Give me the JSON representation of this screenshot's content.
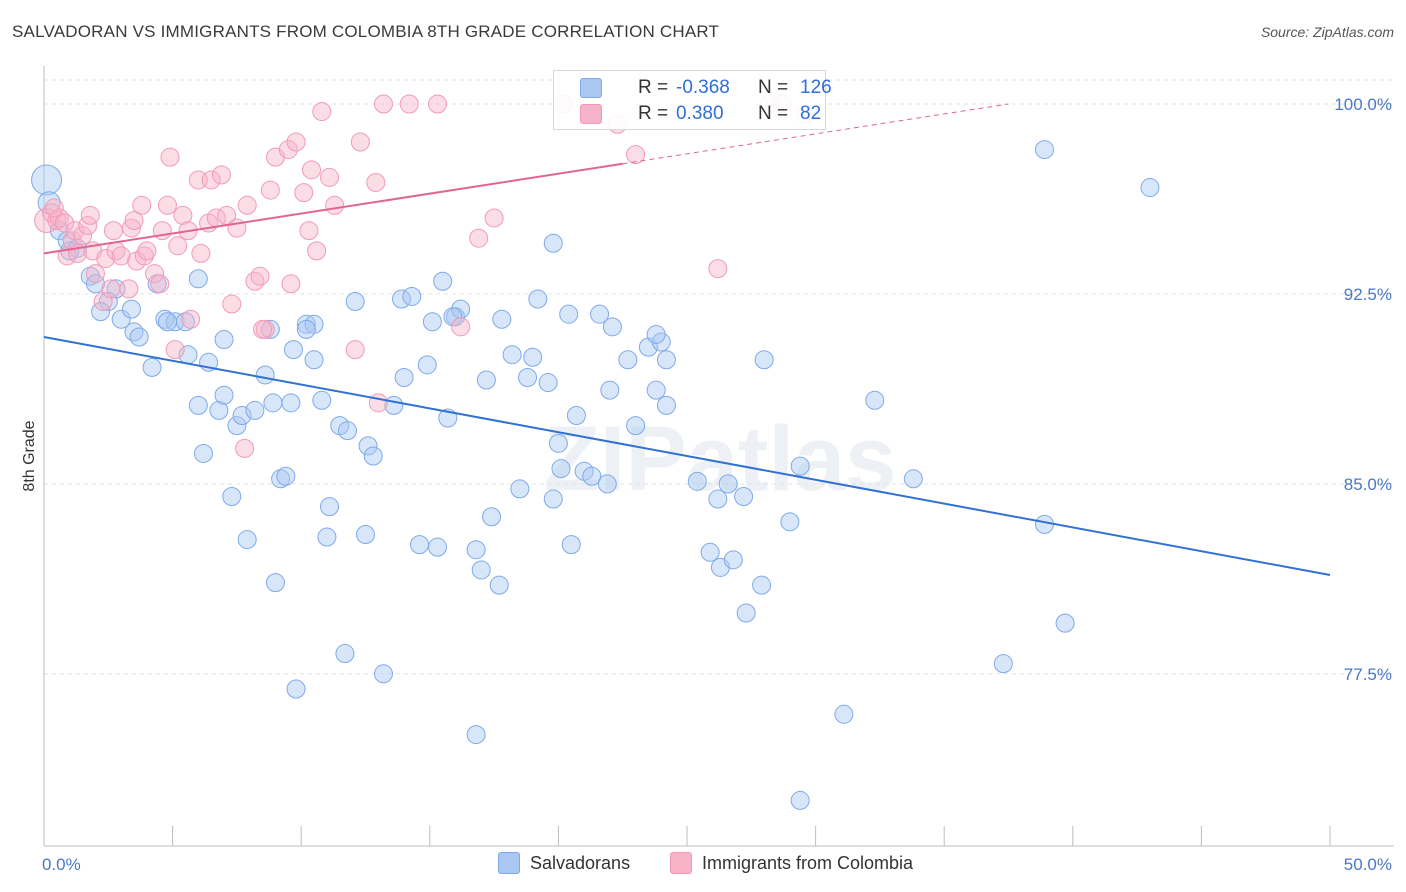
{
  "header": {
    "title": "SALVADORAN VS IMMIGRANTS FROM COLOMBIA 8TH GRADE CORRELATION CHART",
    "source": "Source: ZipAtlas.com"
  },
  "legend": {
    "rows": [
      {
        "r_label": "R =",
        "r_value": "-0.368",
        "n_label": "N =",
        "n_value": "126",
        "color": "#a9c7f2"
      },
      {
        "r_label": "R =",
        "r_value": "0.380",
        "n_label": "N =",
        "n_value": "82",
        "color": "#f6b3c8"
      }
    ]
  },
  "bottom_legend": {
    "items": [
      {
        "label": "Salvadorans",
        "color": "#a9c7f2"
      },
      {
        "label": "Immigrants from Colombia",
        "color": "#f6b3c8"
      }
    ]
  },
  "watermark": "ZIPatlas",
  "chart_data": {
    "type": "scatter",
    "title": "SALVADORAN VS IMMIGRANTS FROM COLOMBIA 8TH GRADE CORRELATION CHART",
    "xlabel": "",
    "ylabel": "8th Grade",
    "xlim": [
      0,
      50
    ],
    "ylim": [
      70.7,
      101.5
    ],
    "x_tick_labels": [
      "0.0%",
      "50.0%"
    ],
    "y_ticks": [
      77.5,
      85.0,
      92.5,
      100.0
    ],
    "y_tick_labels": [
      "77.5%",
      "85.0%",
      "92.5%",
      "100.0%"
    ],
    "grid": true,
    "legend_position": "top-center",
    "series": [
      {
        "name": "Salvadorans",
        "color": "#7eaaea",
        "trend_color": "#2f72d3",
        "trend": {
          "x": [
            0,
            50
          ],
          "y": [
            90.8,
            81.4
          ]
        },
        "points": [
          [
            0.1,
            97.0
          ],
          [
            0.2,
            96.1
          ],
          [
            0.6,
            95.0
          ],
          [
            0.9,
            94.6
          ],
          [
            1.0,
            94.2
          ],
          [
            1.3,
            94.3
          ],
          [
            1.8,
            93.2
          ],
          [
            2.0,
            92.9
          ],
          [
            2.8,
            92.7
          ],
          [
            2.5,
            92.2
          ],
          [
            2.2,
            91.8
          ],
          [
            3.0,
            91.5
          ],
          [
            3.4,
            91.9
          ],
          [
            3.5,
            91.0
          ],
          [
            3.7,
            90.8
          ],
          [
            4.2,
            89.6
          ],
          [
            4.4,
            92.9
          ],
          [
            4.7,
            91.5
          ],
          [
            5.1,
            91.4
          ],
          [
            5.5,
            91.4
          ],
          [
            5.6,
            90.1
          ],
          [
            6.0,
            88.1
          ],
          [
            6.0,
            93.1
          ],
          [
            6.2,
            86.2
          ],
          [
            6.4,
            89.8
          ],
          [
            6.8,
            87.9
          ],
          [
            7.0,
            90.7
          ],
          [
            7.0,
            88.5
          ],
          [
            7.3,
            84.5
          ],
          [
            7.5,
            87.3
          ],
          [
            7.7,
            87.7
          ],
          [
            7.9,
            82.8
          ],
          [
            8.2,
            87.9
          ],
          [
            8.6,
            89.3
          ],
          [
            8.8,
            91.1
          ],
          [
            8.9,
            88.2
          ],
          [
            9.0,
            81.1
          ],
          [
            9.2,
            85.2
          ],
          [
            9.4,
            85.3
          ],
          [
            9.6,
            88.2
          ],
          [
            9.7,
            90.3
          ],
          [
            9.8,
            76.9
          ],
          [
            10.2,
            91.3
          ],
          [
            10.5,
            89.9
          ],
          [
            10.5,
            91.3
          ],
          [
            10.8,
            88.3
          ],
          [
            11.0,
            82.9
          ],
          [
            11.1,
            84.1
          ],
          [
            11.5,
            87.3
          ],
          [
            11.7,
            78.3
          ],
          [
            11.8,
            87.1
          ],
          [
            12.1,
            92.2
          ],
          [
            12.5,
            83.0
          ],
          [
            12.6,
            86.5
          ],
          [
            12.8,
            86.1
          ],
          [
            13.2,
            77.5
          ],
          [
            13.6,
            88.1
          ],
          [
            13.9,
            92.3
          ],
          [
            14.0,
            89.2
          ],
          [
            14.3,
            92.4
          ],
          [
            14.6,
            82.6
          ],
          [
            14.9,
            89.7
          ],
          [
            15.1,
            91.4
          ],
          [
            15.3,
            82.5
          ],
          [
            15.5,
            93.0
          ],
          [
            15.7,
            87.6
          ],
          [
            16.0,
            91.6
          ],
          [
            16.2,
            91.9
          ],
          [
            16.8,
            75.1
          ],
          [
            16.8,
            82.4
          ],
          [
            17.0,
            81.6
          ],
          [
            17.2,
            89.1
          ],
          [
            17.4,
            83.7
          ],
          [
            17.7,
            81.0
          ],
          [
            17.8,
            91.5
          ],
          [
            18.2,
            90.1
          ],
          [
            18.5,
            84.8
          ],
          [
            18.8,
            89.2
          ],
          [
            19.0,
            90.0
          ],
          [
            19.2,
            92.3
          ],
          [
            19.6,
            89.0
          ],
          [
            19.8,
            84.4
          ],
          [
            19.8,
            94.5
          ],
          [
            20.0,
            86.6
          ],
          [
            20.4,
            91.7
          ],
          [
            20.5,
            82.6
          ],
          [
            20.7,
            87.7
          ],
          [
            21.0,
            85.5
          ],
          [
            21.3,
            85.3
          ],
          [
            21.6,
            91.7
          ],
          [
            21.9,
            85.0
          ],
          [
            22.0,
            88.7
          ],
          [
            22.1,
            91.2
          ],
          [
            22.7,
            89.9
          ],
          [
            23.0,
            87.3
          ],
          [
            23.5,
            90.4
          ],
          [
            23.8,
            88.7
          ],
          [
            24.0,
            90.6
          ],
          [
            24.2,
            89.9
          ],
          [
            24.2,
            88.1
          ],
          [
            25.4,
            85.1
          ],
          [
            25.9,
            82.3
          ],
          [
            26.2,
            84.4
          ],
          [
            26.3,
            81.7
          ],
          [
            26.6,
            85.0
          ],
          [
            26.8,
            82.0
          ],
          [
            27.2,
            84.5
          ],
          [
            27.3,
            79.9
          ],
          [
            27.9,
            81.0
          ],
          [
            28.0,
            89.9
          ],
          [
            29.0,
            83.5
          ],
          [
            29.4,
            72.5
          ],
          [
            29.4,
            85.7
          ],
          [
            31.1,
            75.9
          ],
          [
            32.3,
            88.3
          ],
          [
            33.8,
            85.2
          ],
          [
            37.3,
            77.9
          ],
          [
            38.9,
            83.4
          ],
          [
            38.9,
            98.2
          ],
          [
            39.7,
            79.5
          ],
          [
            43.0,
            96.7
          ],
          [
            20.1,
            85.6
          ],
          [
            4.8,
            91.4
          ],
          [
            10.2,
            91.1
          ],
          [
            15.9,
            91.6
          ],
          [
            23.8,
            90.9
          ]
        ]
      },
      {
        "name": "Immigrants from Colombia",
        "color": "#f29ab8",
        "trend_color": "#e0668f",
        "trend": {
          "x": [
            0,
            37.5
          ],
          "y": [
            94.1,
            100.0
          ]
        },
        "points": [
          [
            0.1,
            95.4
          ],
          [
            0.3,
            95.7
          ],
          [
            0.5,
            95.4
          ],
          [
            0.6,
            95.5
          ],
          [
            0.8,
            95.3
          ],
          [
            0.9,
            94.0
          ],
          [
            1.1,
            94.6
          ],
          [
            1.2,
            95.0
          ],
          [
            1.3,
            94.1
          ],
          [
            1.5,
            94.8
          ],
          [
            1.7,
            95.2
          ],
          [
            1.8,
            95.6
          ],
          [
            1.9,
            94.2
          ],
          [
            2.0,
            93.3
          ],
          [
            2.3,
            92.2
          ],
          [
            2.4,
            93.9
          ],
          [
            2.7,
            95.0
          ],
          [
            2.8,
            94.2
          ],
          [
            3.0,
            94.0
          ],
          [
            3.3,
            92.7
          ],
          [
            3.4,
            95.1
          ],
          [
            3.5,
            95.4
          ],
          [
            3.6,
            93.8
          ],
          [
            3.8,
            96.0
          ],
          [
            3.9,
            94.0
          ],
          [
            4.0,
            94.2
          ],
          [
            4.3,
            93.3
          ],
          [
            4.5,
            92.9
          ],
          [
            4.6,
            95.0
          ],
          [
            4.8,
            96.0
          ],
          [
            4.9,
            97.9
          ],
          [
            5.2,
            94.4
          ],
          [
            5.4,
            95.6
          ],
          [
            5.6,
            95.0
          ],
          [
            5.7,
            91.5
          ],
          [
            6.0,
            97.0
          ],
          [
            6.1,
            94.1
          ],
          [
            6.4,
            95.3
          ],
          [
            6.5,
            97.0
          ],
          [
            6.7,
            95.5
          ],
          [
            6.9,
            97.2
          ],
          [
            7.1,
            95.6
          ],
          [
            7.3,
            92.1
          ],
          [
            7.5,
            95.1
          ],
          [
            7.9,
            96.0
          ],
          [
            8.2,
            93.0
          ],
          [
            8.4,
            93.2
          ],
          [
            8.6,
            91.1
          ],
          [
            8.8,
            96.6
          ],
          [
            9.0,
            97.9
          ],
          [
            9.5,
            98.2
          ],
          [
            9.6,
            92.9
          ],
          [
            9.8,
            98.5
          ],
          [
            10.1,
            96.5
          ],
          [
            10.3,
            95.0
          ],
          [
            10.6,
            94.2
          ],
          [
            10.8,
            99.7
          ],
          [
            11.1,
            97.1
          ],
          [
            11.3,
            96.0
          ],
          [
            12.1,
            90.3
          ],
          [
            12.3,
            98.5
          ],
          [
            12.9,
            96.9
          ],
          [
            13.2,
            100.0
          ],
          [
            14.2,
            100.0
          ],
          [
            15.3,
            100.0
          ],
          [
            16.2,
            91.2
          ],
          [
            16.9,
            94.7
          ],
          [
            17.5,
            95.5
          ],
          [
            20.2,
            100.0
          ],
          [
            22.3,
            99.2
          ],
          [
            26.2,
            93.5
          ],
          [
            28.2,
            100.0
          ],
          [
            28.7,
            100.0
          ],
          [
            29.6,
            99.6
          ],
          [
            23.0,
            98.0
          ],
          [
            13.0,
            88.2
          ],
          [
            7.8,
            86.4
          ],
          [
            5.1,
            90.3
          ],
          [
            2.6,
            92.7
          ],
          [
            0.4,
            95.9
          ],
          [
            10.4,
            97.4
          ],
          [
            8.5,
            91.1
          ]
        ]
      }
    ]
  }
}
